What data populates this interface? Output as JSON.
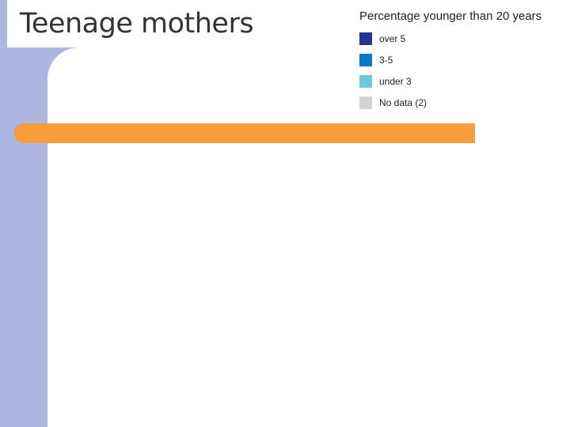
{
  "title": "Teenage mothers",
  "legend": {
    "title": "Percentage younger than 20 years",
    "items": [
      {
        "label": "over 5",
        "color": "#27358b"
      },
      {
        "label": "3-5",
        "color": "#0a7ac4"
      },
      {
        "label": "under 3",
        "color": "#6dcad8"
      },
      {
        "label": "No data (2)",
        "color": "#d3d3d3"
      }
    ]
  },
  "colors": {
    "side_rail": "#adb6df",
    "accent_bar": "#f99d3c"
  }
}
